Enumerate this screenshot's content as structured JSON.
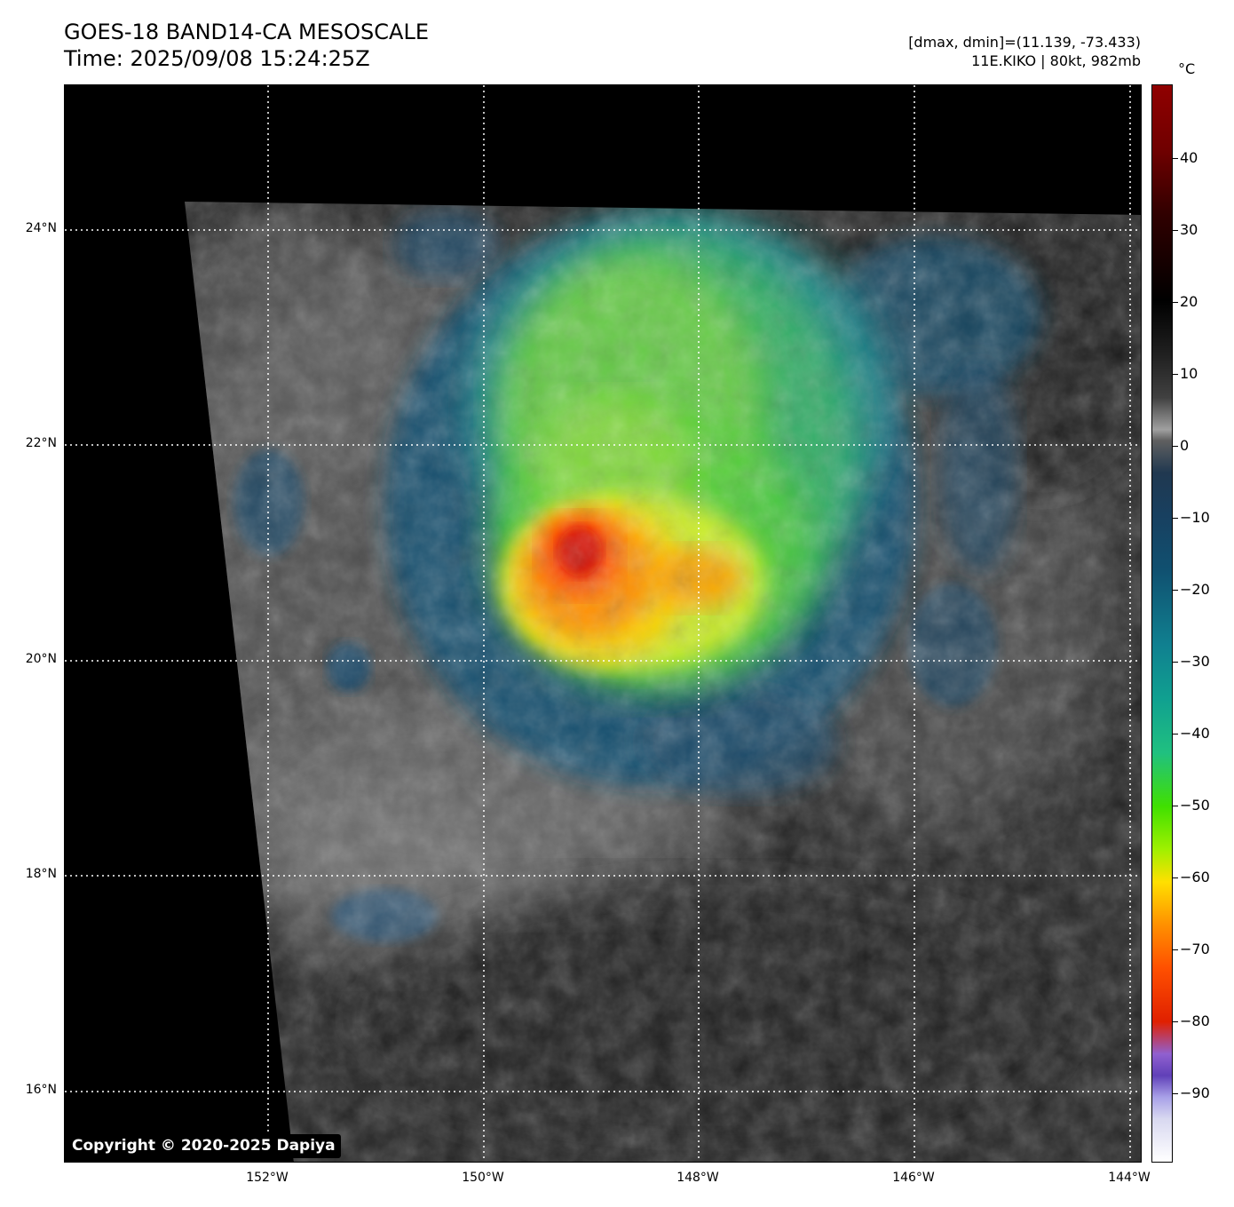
{
  "title_line1": "GOES-18 BAND14-CA MESOSCALE",
  "title_line2": "Time: 2025/09/08 15:24:25Z",
  "meta_line1": "[dmax, dmin]=(11.139, -73.433)",
  "meta_line2": "11E.KIKO | 80kt, 982mb",
  "copyright": "Copyright © 2020-2025 Dapiya",
  "lat_labels": [
    "24°N",
    "22°N",
    "20°N",
    "18°N",
    "16°N"
  ],
  "lon_labels": [
    "152°W",
    "150°W",
    "148°W",
    "146°W",
    "144°W"
  ],
  "colorbar": {
    "unit": "°C",
    "labels": [
      "40",
      "30",
      "20",
      "10",
      "0",
      "−10",
      "−20",
      "−30",
      "−40",
      "−50",
      "−60",
      "−70",
      "−80",
      "−90"
    ]
  }
}
